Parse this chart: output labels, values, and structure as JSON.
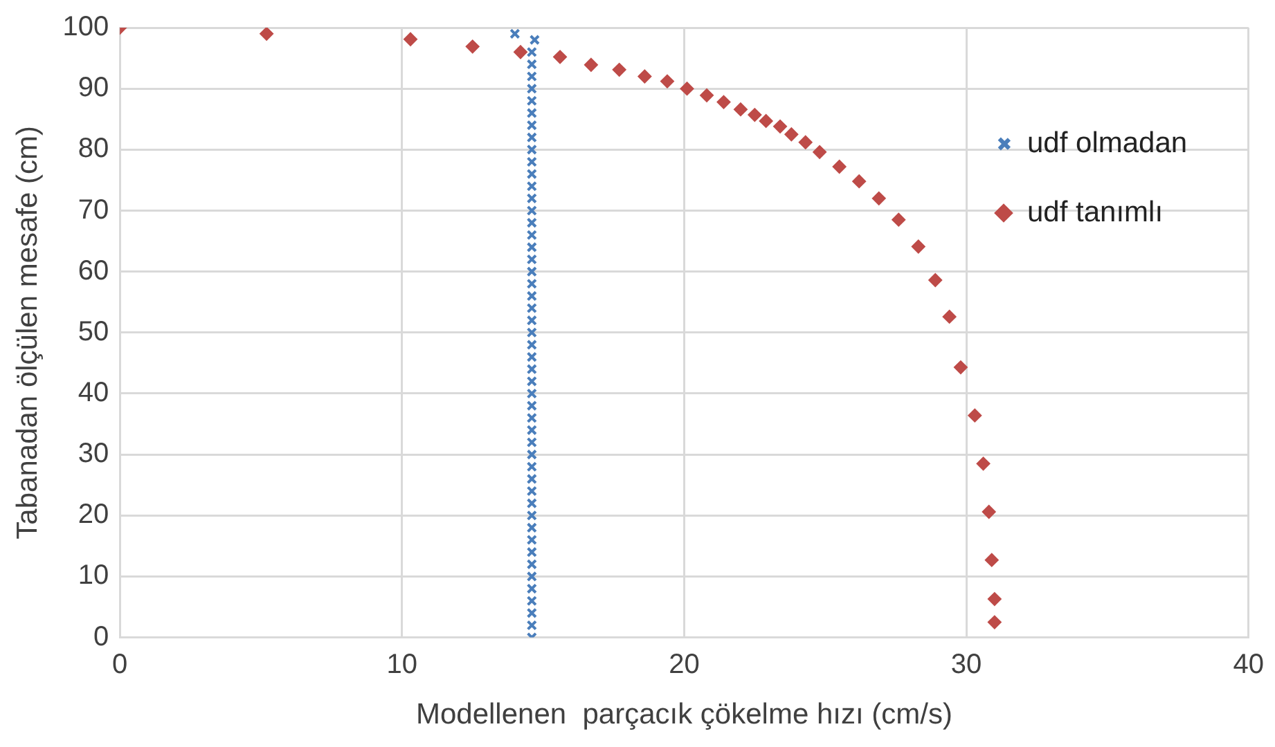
{
  "chart_data": {
    "type": "scatter",
    "xlabel": "Modellenen  parçacık çökelme hızı (cm/s)",
    "ylabel": "Tabanadan ölçülen mesafe (cm)",
    "xlim": [
      0,
      40
    ],
    "xticks": [
      0,
      10,
      20,
      30,
      40
    ],
    "ylim": [
      0,
      100
    ],
    "yticks": [
      0,
      10,
      20,
      30,
      40,
      50,
      60,
      70,
      80,
      90,
      100
    ],
    "grid": true,
    "legend": "right",
    "series": [
      {
        "name": "udf olmadan",
        "color": "#4a7ebb",
        "marker": "cross",
        "x": [
          14.0,
          14.7,
          14.6,
          14.6,
          14.6,
          14.6,
          14.6,
          14.6,
          14.6,
          14.6,
          14.6,
          14.6,
          14.6,
          14.6,
          14.6,
          14.6,
          14.6,
          14.6,
          14.6,
          14.6,
          14.6,
          14.6,
          14.6,
          14.6,
          14.6,
          14.6,
          14.6,
          14.6,
          14.6,
          14.6,
          14.6,
          14.6,
          14.6,
          14.6,
          14.6,
          14.6,
          14.6,
          14.6,
          14.6,
          14.6,
          14.6,
          14.6,
          14.6,
          14.6,
          14.6,
          14.6,
          14.6,
          14.6,
          14.6,
          14.6,
          14.6
        ],
        "values": [
          99,
          98,
          96,
          94,
          92,
          90,
          88,
          86,
          84,
          82,
          80,
          78,
          76,
          74,
          72,
          70,
          68,
          66,
          64,
          62,
          60,
          58,
          56,
          54,
          52,
          50,
          48,
          46,
          44,
          42,
          40,
          38,
          36,
          34,
          32,
          30,
          28,
          26,
          24,
          22,
          20,
          18,
          16,
          14,
          12,
          10,
          8,
          6,
          4,
          2,
          0
        ]
      },
      {
        "name": "udf tanımlı",
        "color": "#be4b48",
        "marker": "diamond",
        "x": [
          0,
          5.2,
          10.3,
          12.5,
          14.2,
          15.6,
          16.7,
          17.7,
          18.6,
          19.4,
          20.1,
          20.8,
          21.4,
          22.0,
          22.5,
          22.9,
          23.4,
          23.8,
          24.3,
          24.8,
          25.5,
          26.2,
          26.9,
          27.6,
          28.3,
          28.9,
          29.4,
          29.8,
          30.3,
          30.6,
          30.8,
          30.9,
          31.0,
          31.0
        ],
        "values": [
          100,
          99,
          98.1,
          96.9,
          96,
          95.2,
          93.9,
          93.1,
          92,
          91.2,
          90,
          88.9,
          87.8,
          86.6,
          85.7,
          84.7,
          83.8,
          82.5,
          81.2,
          79.6,
          77.2,
          74.8,
          72,
          68.5,
          64.1,
          58.6,
          52.6,
          44.3,
          36.4,
          28.5,
          20.6,
          12.7,
          6.3,
          2.5
        ]
      }
    ]
  }
}
